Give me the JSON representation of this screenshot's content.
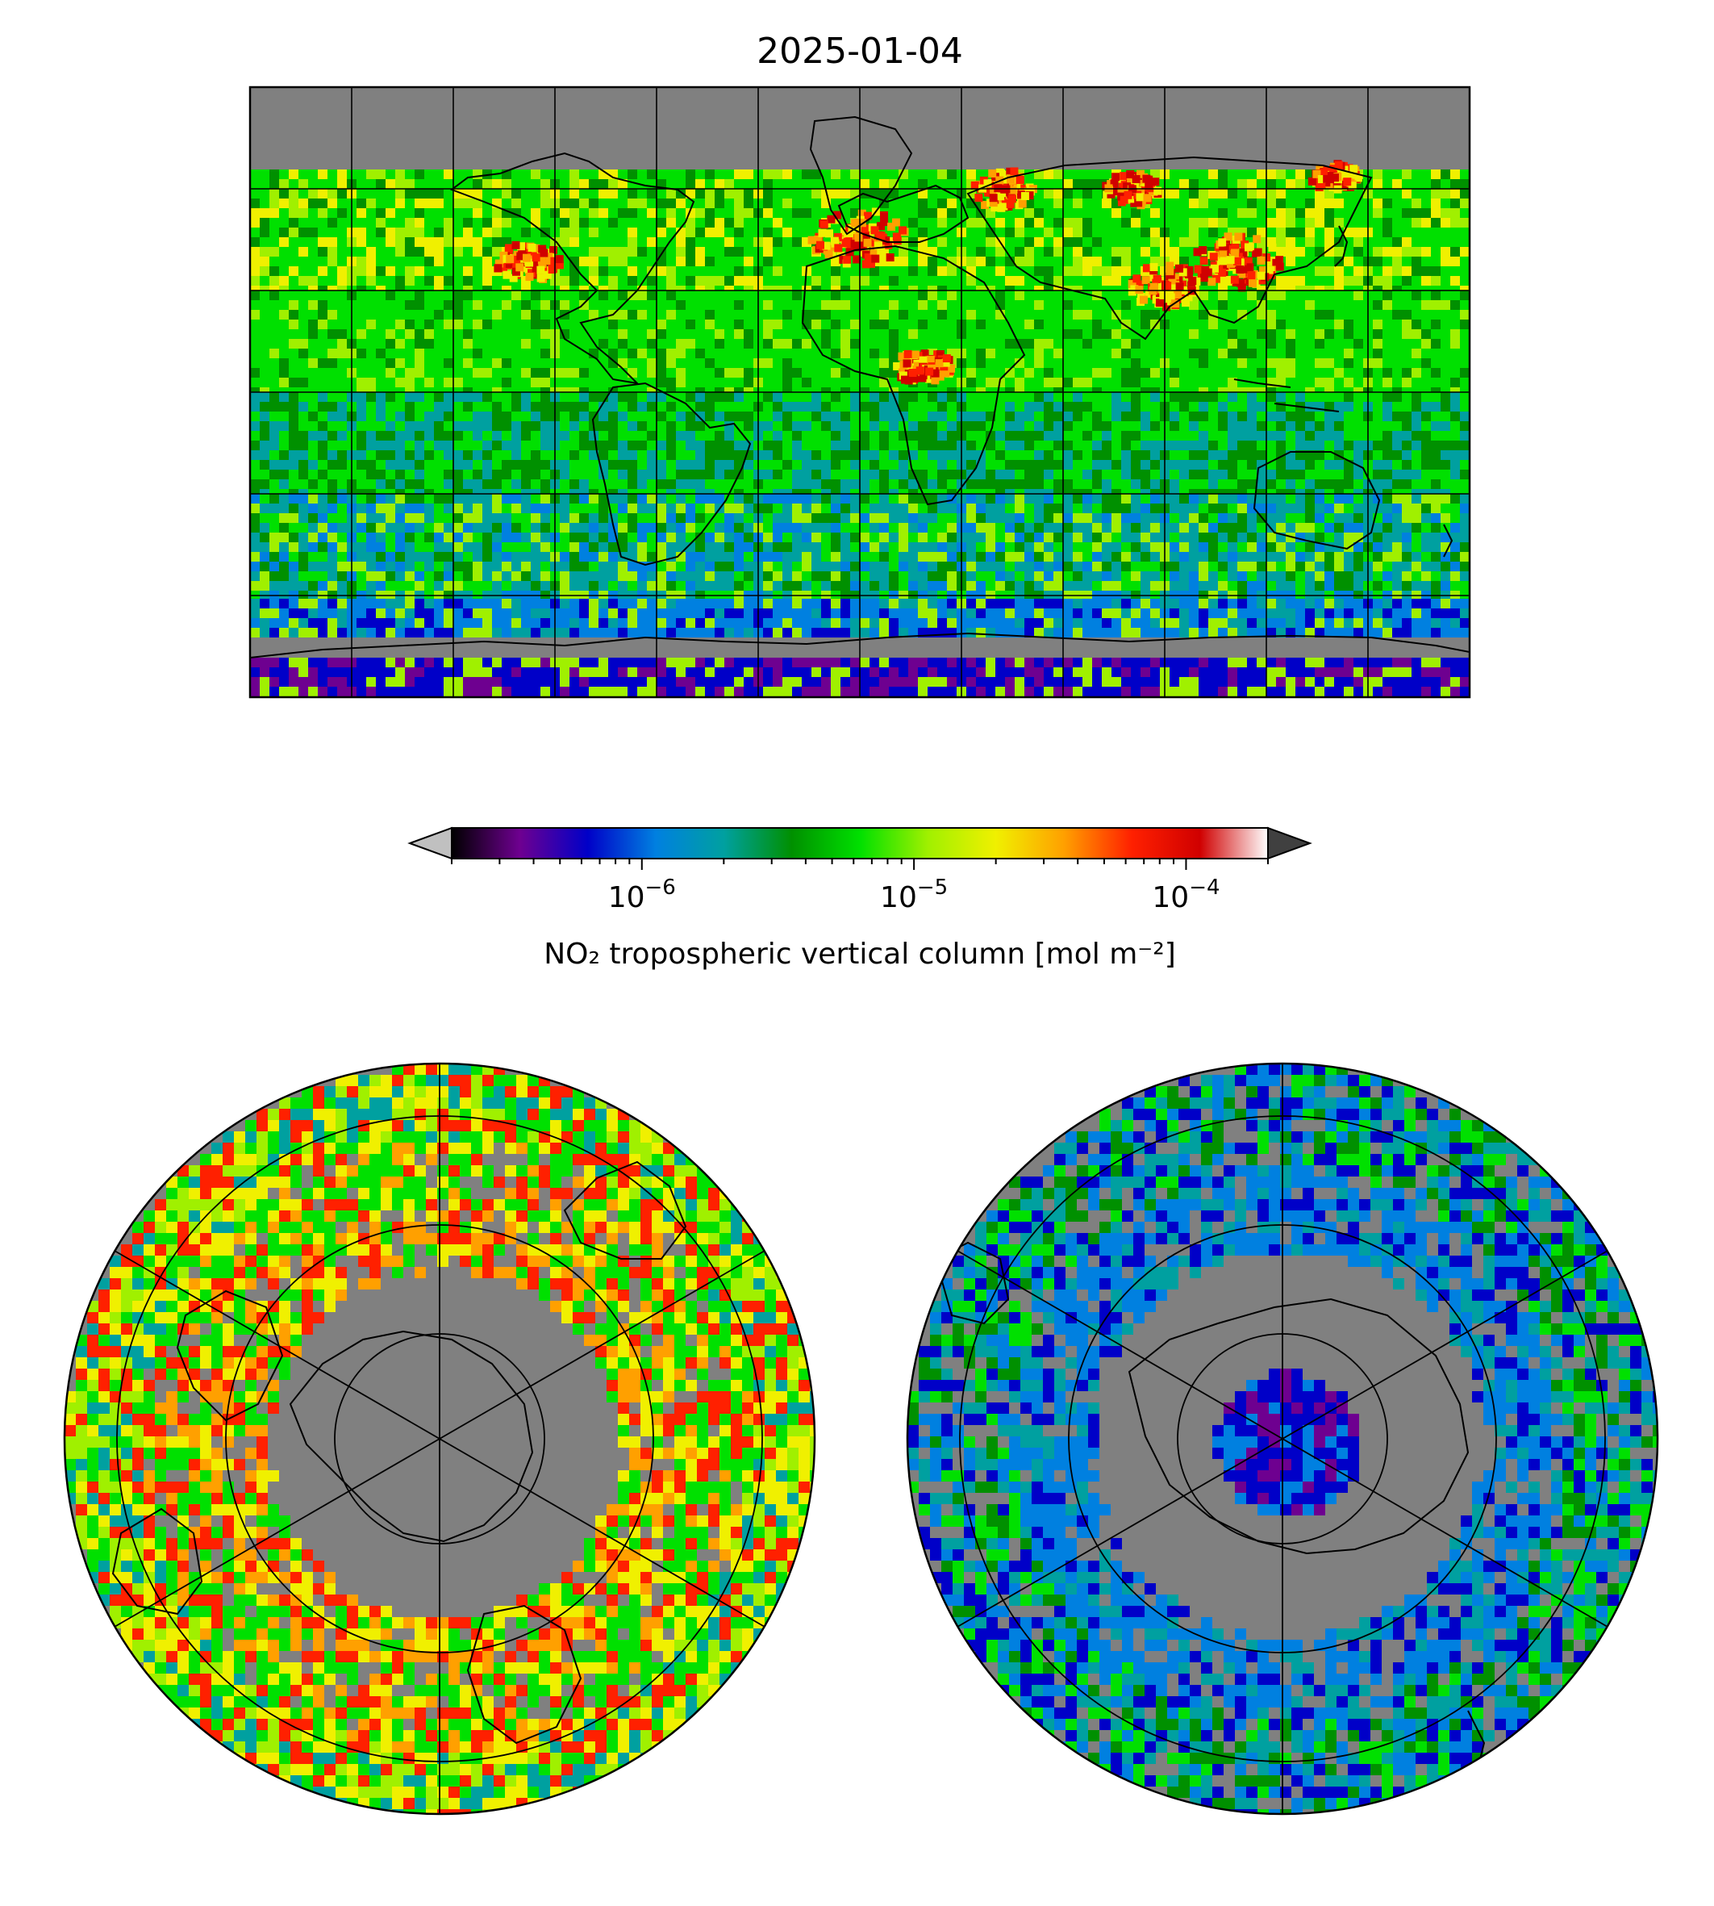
{
  "figure": {
    "title": "2025-01-04"
  },
  "colorbar": {
    "label": "NO₂ tropospheric vertical column [mol m⁻²]",
    "scale": "log",
    "range": [
      2e-07,
      0.0002
    ],
    "extend": "both",
    "ticks": [
      {
        "value": 1e-06,
        "base": "10",
        "exp": "−6"
      },
      {
        "value": 1e-05,
        "base": "10",
        "exp": "−5"
      },
      {
        "value": 0.0001,
        "base": "10",
        "exp": "−4"
      }
    ],
    "colors": [
      "#000000",
      "#6e0090",
      "#0000c8",
      "#0080e0",
      "#00a0a0",
      "#009000",
      "#00e000",
      "#a0f000",
      "#f0f000",
      "#ffa000",
      "#ff2000",
      "#d00000",
      "#ffffff"
    ],
    "under_color": "#c0c0c0",
    "over_color": "#404040",
    "missing_color": "#808080"
  },
  "maps": {
    "global": {
      "projection": "plate-carree",
      "gridlines": true
    },
    "north": {
      "projection": "north-polar-stereographic",
      "gridlines": true
    },
    "south": {
      "projection": "south-polar-stereographic",
      "gridlines": true
    }
  }
}
